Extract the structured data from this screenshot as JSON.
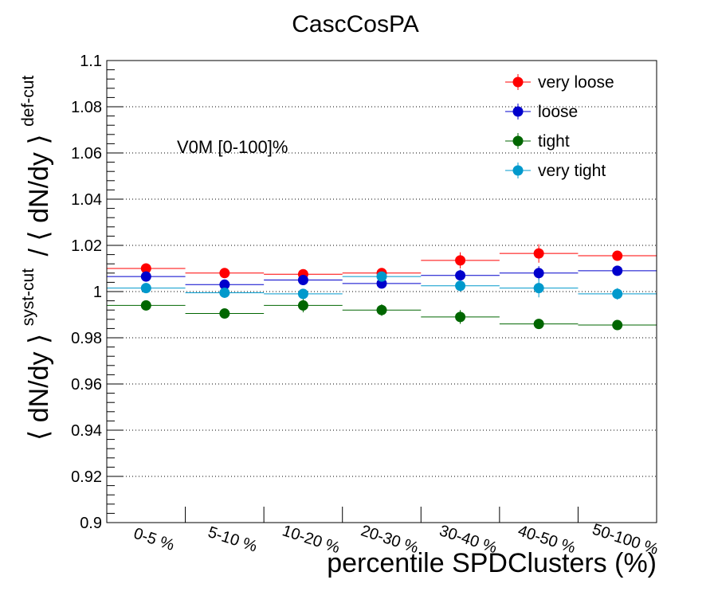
{
  "chart_data": {
    "type": "scatter",
    "title": "CascCosPA",
    "xlabel": "percentile SPDClusters (%)",
    "ylabel": {
      "main": "⟨ dN/dy ⟩",
      "sup1": "syst-cut",
      "divider": "/ ⟨ dN/dy ⟩",
      "sup2": "def-cut"
    },
    "annotation": "V0M [0-100]%",
    "categories": [
      "0-5 %",
      "5-10 %",
      "10-20 %",
      "20-30 %",
      "30-40 %",
      "40-50 %",
      "50-100 %"
    ],
    "ylim": [
      0.9,
      1.1
    ],
    "yticks": [
      0.9,
      0.92,
      0.94,
      0.96,
      0.98,
      1,
      1.02,
      1.04,
      1.06,
      1.08,
      1.1
    ],
    "ytick_labels": [
      "0.9",
      "0.92",
      "0.94",
      "0.96",
      "0.98",
      "1",
      "1.02",
      "1.04",
      "1.06",
      "1.08",
      "1.1"
    ],
    "grid": "horizontal",
    "legend_position": "top-right",
    "series": [
      {
        "name": "very loose",
        "color": "#ff0000",
        "values": [
          1.01,
          1.008,
          1.0075,
          1.008,
          1.0135,
          1.0165,
          1.0155
        ],
        "errors": [
          0.002,
          0.002,
          0.002,
          0.002,
          0.0035,
          0.004,
          0.002
        ]
      },
      {
        "name": "loose",
        "color": "#0000cc",
        "values": [
          1.0065,
          1.003,
          1.005,
          1.0035,
          1.007,
          1.008,
          1.009
        ],
        "errors": [
          0.002,
          0.002,
          0.002,
          0.002,
          0.0025,
          0.003,
          0.002
        ]
      },
      {
        "name": "tight",
        "color": "#006600",
        "values": [
          0.994,
          0.9905,
          0.994,
          0.992,
          0.989,
          0.986,
          0.9855
        ],
        "errors": [
          0.002,
          0.002,
          0.003,
          0.0025,
          0.003,
          0.002,
          0.002
        ]
      },
      {
        "name": "very tight",
        "color": "#0099cc",
        "values": [
          1.0015,
          0.9995,
          0.999,
          1.0065,
          1.0025,
          1.0015,
          0.999
        ],
        "errors": [
          0.002,
          0.002,
          0.002,
          0.002,
          0.0025,
          0.004,
          0.0025
        ]
      }
    ]
  }
}
